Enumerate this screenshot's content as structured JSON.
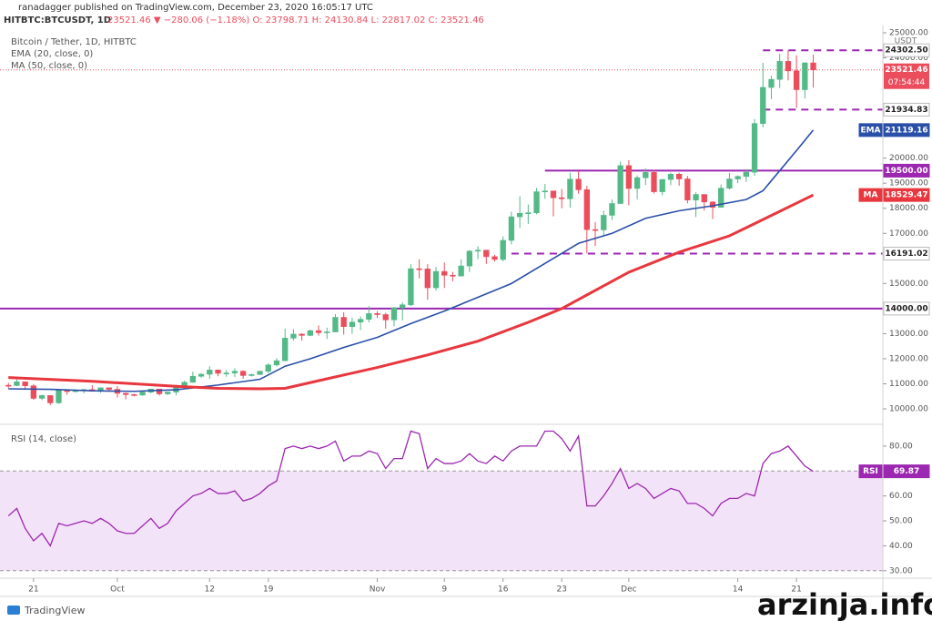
{
  "header": {
    "published": "ranadagger published on TradingView.com, December 23, 2020 16:05:17 UTC",
    "symbol": "HITBTC:BTCUSDT, 1D",
    "quote": "23521.46 ▼ −280.06 (−1.18%) O: 23798.71 H: 24130.84 L: 22817.02 C: 23521.46"
  },
  "footer": {
    "brand": "TradingView",
    "watermark": "arzinja.info"
  },
  "chart_data": {
    "type": "candlestick",
    "title": "Bitcoin / Tether, 1D, HITBTC",
    "currency": "USDT",
    "up_color": "#53b987",
    "down_color": "#eb4d5c",
    "grid": false,
    "xlim": [
      -1,
      104.3
    ],
    "xticks": [
      {
        "value": 3,
        "label": "21"
      },
      {
        "value": 13,
        "label": "Oct"
      },
      {
        "value": 24,
        "label": "12"
      },
      {
        "value": 31,
        "label": "19"
      },
      {
        "value": 44,
        "label": "Nov"
      },
      {
        "value": 52,
        "label": "9"
      },
      {
        "value": 59,
        "label": "16"
      },
      {
        "value": 66,
        "label": "23"
      },
      {
        "value": 74,
        "label": "Dec"
      },
      {
        "value": 87,
        "label": "14"
      },
      {
        "value": 94,
        "label": "21"
      }
    ],
    "ylim": [
      9420,
      25290
    ],
    "yticks": [
      {
        "value": 10000,
        "label": "10000.00"
      },
      {
        "value": 11000,
        "label": "11000.00"
      },
      {
        "value": 12000,
        "label": "12000.00"
      },
      {
        "value": 13000,
        "label": "13000.00"
      },
      {
        "value": 15000,
        "label": "15000.00"
      },
      {
        "value": 17000,
        "label": "17000.00"
      },
      {
        "value": 18000,
        "label": "18000.00"
      },
      {
        "value": 19000,
        "label": "19000.00"
      },
      {
        "value": 20000,
        "label": "20000.00"
      },
      {
        "value": 24000,
        "label": "24000.00"
      },
      {
        "value": 25000,
        "label": "25000.00"
      }
    ],
    "candles": [
      [
        10940,
        11040,
        10820,
        10930
      ],
      [
        10930,
        11180,
        10900,
        11080
      ],
      [
        11080,
        11080,
        10780,
        10920
      ],
      [
        10920,
        10990,
        10360,
        10420
      ],
      [
        10420,
        10570,
        10350,
        10530
      ],
      [
        10530,
        10540,
        10150,
        10240
      ],
      [
        10240,
        10780,
        10200,
        10740
      ],
      [
        10740,
        10760,
        10560,
        10690
      ],
      [
        10690,
        10780,
        10650,
        10730
      ],
      [
        10730,
        10800,
        10620,
        10770
      ],
      [
        10770,
        10950,
        10700,
        10700
      ],
      [
        10700,
        10860,
        10640,
        10840
      ],
      [
        10840,
        10850,
        10680,
        10780
      ],
      [
        10780,
        10910,
        10450,
        10620
      ],
      [
        10620,
        10650,
        10380,
        10570
      ],
      [
        10570,
        10600,
        10500,
        10550
      ],
      [
        10550,
        10700,
        10520,
        10670
      ],
      [
        10670,
        10800,
        10620,
        10790
      ],
      [
        10790,
        10800,
        10530,
        10600
      ],
      [
        10600,
        10690,
        10550,
        10670
      ],
      [
        10670,
        10960,
        10540,
        10920
      ],
      [
        10920,
        11120,
        10840,
        11060
      ],
      [
        11060,
        11480,
        11040,
        11300
      ],
      [
        11300,
        11430,
        11240,
        11380
      ],
      [
        11380,
        11700,
        11200,
        11550
      ],
      [
        11550,
        11560,
        11300,
        11420
      ],
      [
        11420,
        11550,
        11280,
        11430
      ],
      [
        11430,
        11620,
        11270,
        11500
      ],
      [
        11500,
        11540,
        11200,
        11330
      ],
      [
        11330,
        11400,
        11290,
        11370
      ],
      [
        11370,
        11520,
        11350,
        11500
      ],
      [
        11500,
        11820,
        11420,
        11750
      ],
      [
        11750,
        12020,
        11690,
        11920
      ],
      [
        11920,
        13200,
        11900,
        12820
      ],
      [
        12820,
        13180,
        12720,
        12980
      ],
      [
        12980,
        13020,
        12720,
        12930
      ],
      [
        12930,
        13160,
        12900,
        13120
      ],
      [
        13120,
        13330,
        12920,
        13040
      ],
      [
        13040,
        13240,
        12790,
        13070
      ],
      [
        13070,
        13780,
        13060,
        13650
      ],
      [
        13650,
        13850,
        12960,
        13280
      ],
      [
        13280,
        13640,
        12990,
        13460
      ],
      [
        13460,
        13690,
        13140,
        13570
      ],
      [
        13570,
        14100,
        13450,
        13800
      ],
      [
        13800,
        13900,
        13620,
        13760
      ],
      [
        13760,
        13830,
        13200,
        13550
      ],
      [
        13550,
        14070,
        13300,
        14030
      ],
      [
        14030,
        14250,
        13530,
        14150
      ],
      [
        14150,
        15770,
        14100,
        15590
      ],
      [
        15590,
        15970,
        15200,
        15580
      ],
      [
        15580,
        15770,
        14350,
        14830
      ],
      [
        14830,
        15660,
        14720,
        15480
      ],
      [
        15480,
        15840,
        14820,
        15330
      ],
      [
        15330,
        15460,
        15090,
        15300
      ],
      [
        15300,
        15970,
        15280,
        15700
      ],
      [
        15700,
        16340,
        15460,
        16290
      ],
      [
        16290,
        16480,
        15970,
        16330
      ],
      [
        16330,
        16330,
        15780,
        16070
      ],
      [
        16070,
        16140,
        15870,
        15960
      ],
      [
        15960,
        16880,
        15880,
        16720
      ],
      [
        16720,
        17860,
        16560,
        17660
      ],
      [
        17660,
        18480,
        17220,
        17800
      ],
      [
        17800,
        18150,
        17380,
        17820
      ],
      [
        17820,
        18810,
        17760,
        18660
      ],
      [
        18660,
        18970,
        18380,
        18690
      ],
      [
        18690,
        18700,
        17680,
        18420
      ],
      [
        18420,
        18770,
        18000,
        18380
      ],
      [
        18380,
        19420,
        18020,
        19160
      ],
      [
        19160,
        19480,
        18580,
        18740
      ],
      [
        18740,
        18900,
        16200,
        17150
      ],
      [
        17150,
        17450,
        16500,
        17140
      ],
      [
        17140,
        17900,
        16880,
        17720
      ],
      [
        17720,
        18350,
        17530,
        18190
      ],
      [
        18190,
        19860,
        18180,
        19700
      ],
      [
        19700,
        19920,
        18120,
        18790
      ],
      [
        18790,
        19310,
        18360,
        19220
      ],
      [
        19220,
        19600,
        18930,
        19430
      ],
      [
        19430,
        19530,
        18590,
        18660
      ],
      [
        18660,
        19170,
        18520,
        19150
      ],
      [
        19150,
        19420,
        18920,
        19360
      ],
      [
        19360,
        19420,
        18900,
        19170
      ],
      [
        19170,
        19290,
        18200,
        18330
      ],
      [
        18330,
        18640,
        17650,
        18550
      ],
      [
        18550,
        18560,
        17910,
        18250
      ],
      [
        18250,
        18280,
        17570,
        18040
      ],
      [
        18040,
        18950,
        18020,
        18800
      ],
      [
        18800,
        19410,
        18750,
        19170
      ],
      [
        19170,
        19310,
        19000,
        19270
      ],
      [
        19270,
        19560,
        19050,
        19440
      ],
      [
        19440,
        21560,
        19300,
        21380
      ],
      [
        21380,
        23800,
        21230,
        22820
      ],
      [
        22820,
        23280,
        22350,
        23140
      ],
      [
        23140,
        24170,
        22800,
        23860
      ],
      [
        23860,
        24300,
        23100,
        23480
      ],
      [
        23480,
        24100,
        22000,
        22730
      ],
      [
        22730,
        23830,
        22380,
        23798.71
      ],
      [
        23798.71,
        24130.84,
        22817.02,
        23521.46
      ]
    ],
    "series": [
      {
        "name": "EMA",
        "legend": "EMA (20, close, 0)",
        "color": "#2a4fa8",
        "x": [
          0,
          5,
          10,
          15,
          20,
          25,
          30,
          33,
          36,
          40,
          44,
          48,
          52,
          56,
          60,
          64,
          68,
          72,
          76,
          80,
          84,
          88,
          90,
          92,
          94,
          96
        ],
        "values": [
          10800,
          10780,
          10720,
          10700,
          10760,
          10950,
          11180,
          11700,
          12000,
          12450,
          12850,
          13400,
          13900,
          14450,
          15000,
          15800,
          16600,
          17000,
          17600,
          17900,
          18100,
          18350,
          18700,
          19500,
          20300,
          21119.16
        ]
      },
      {
        "name": "MA",
        "legend": "MA (50, close, 0)",
        "color": "#e8373e",
        "x": [
          0,
          10,
          20,
          25,
          30,
          33,
          38,
          44,
          50,
          56,
          62,
          66,
          74,
          80,
          86,
          90,
          96
        ],
        "values": [
          11250,
          11100,
          10900,
          10820,
          10800,
          10820,
          11200,
          11650,
          12150,
          12700,
          13450,
          14000,
          15450,
          16250,
          16900,
          17550,
          18529.47
        ]
      }
    ],
    "levels": [
      {
        "value": 24302.5,
        "label": "24302.50",
        "from": 90,
        "dashed": true,
        "filled": false,
        "color": "#9c27b0"
      },
      {
        "value": 21934.83,
        "label": "21934.83",
        "from": 90,
        "dashed": true,
        "filled": false,
        "color": "#9c27b0"
      },
      {
        "value": 19500,
        "label": "19500.00",
        "from": 64,
        "dashed": false,
        "filled": true,
        "color": "#9c27b0"
      },
      {
        "value": 16191.02,
        "label": "16191.02",
        "from": 60,
        "dashed": true,
        "filled": false,
        "color": "#9c27b0"
      },
      {
        "value": 14000,
        "label": "14000.00",
        "from": -1,
        "dashed": false,
        "filled": false,
        "color": "#9c27b0"
      }
    ],
    "last": {
      "value": 23521.46,
      "countdown": "07:54:44",
      "color": "#eb4d5c"
    },
    "rsi": {
      "title": "RSI (14, close)",
      "name": "RSI",
      "color": "#9c27b0",
      "band_color": "#f3e3f8",
      "band": [
        30,
        70
      ],
      "ylim": [
        27,
        88
      ],
      "yticks": [
        {
          "value": 30,
          "label": "30.00"
        },
        {
          "value": 40,
          "label": "40.00"
        },
        {
          "value": 50,
          "label": "50.00"
        },
        {
          "value": 60,
          "label": "60.00"
        },
        {
          "value": 80,
          "label": "80.00"
        }
      ],
      "values": [
        52,
        55,
        47,
        42,
        45,
        40,
        49,
        48,
        49,
        50,
        49,
        51,
        49,
        46,
        45,
        45,
        48,
        51,
        47,
        49,
        54,
        57,
        60,
        61,
        63,
        61,
        61,
        62,
        58,
        59,
        61,
        64,
        66,
        79,
        80,
        79,
        80,
        79,
        80,
        82,
        74,
        76,
        76,
        78,
        77,
        71,
        75,
        75,
        86,
        85,
        71,
        75,
        73,
        73,
        74,
        77,
        74,
        73,
        76,
        74,
        78,
        80,
        80,
        80,
        86,
        86,
        83,
        78,
        84,
        56,
        56,
        60,
        65,
        71,
        63,
        65,
        63,
        59,
        61,
        63,
        62,
        57,
        57,
        55,
        52,
        57,
        59,
        59,
        61,
        60,
        73,
        77,
        78,
        80,
        76,
        72,
        69.87
      ]
    }
  }
}
